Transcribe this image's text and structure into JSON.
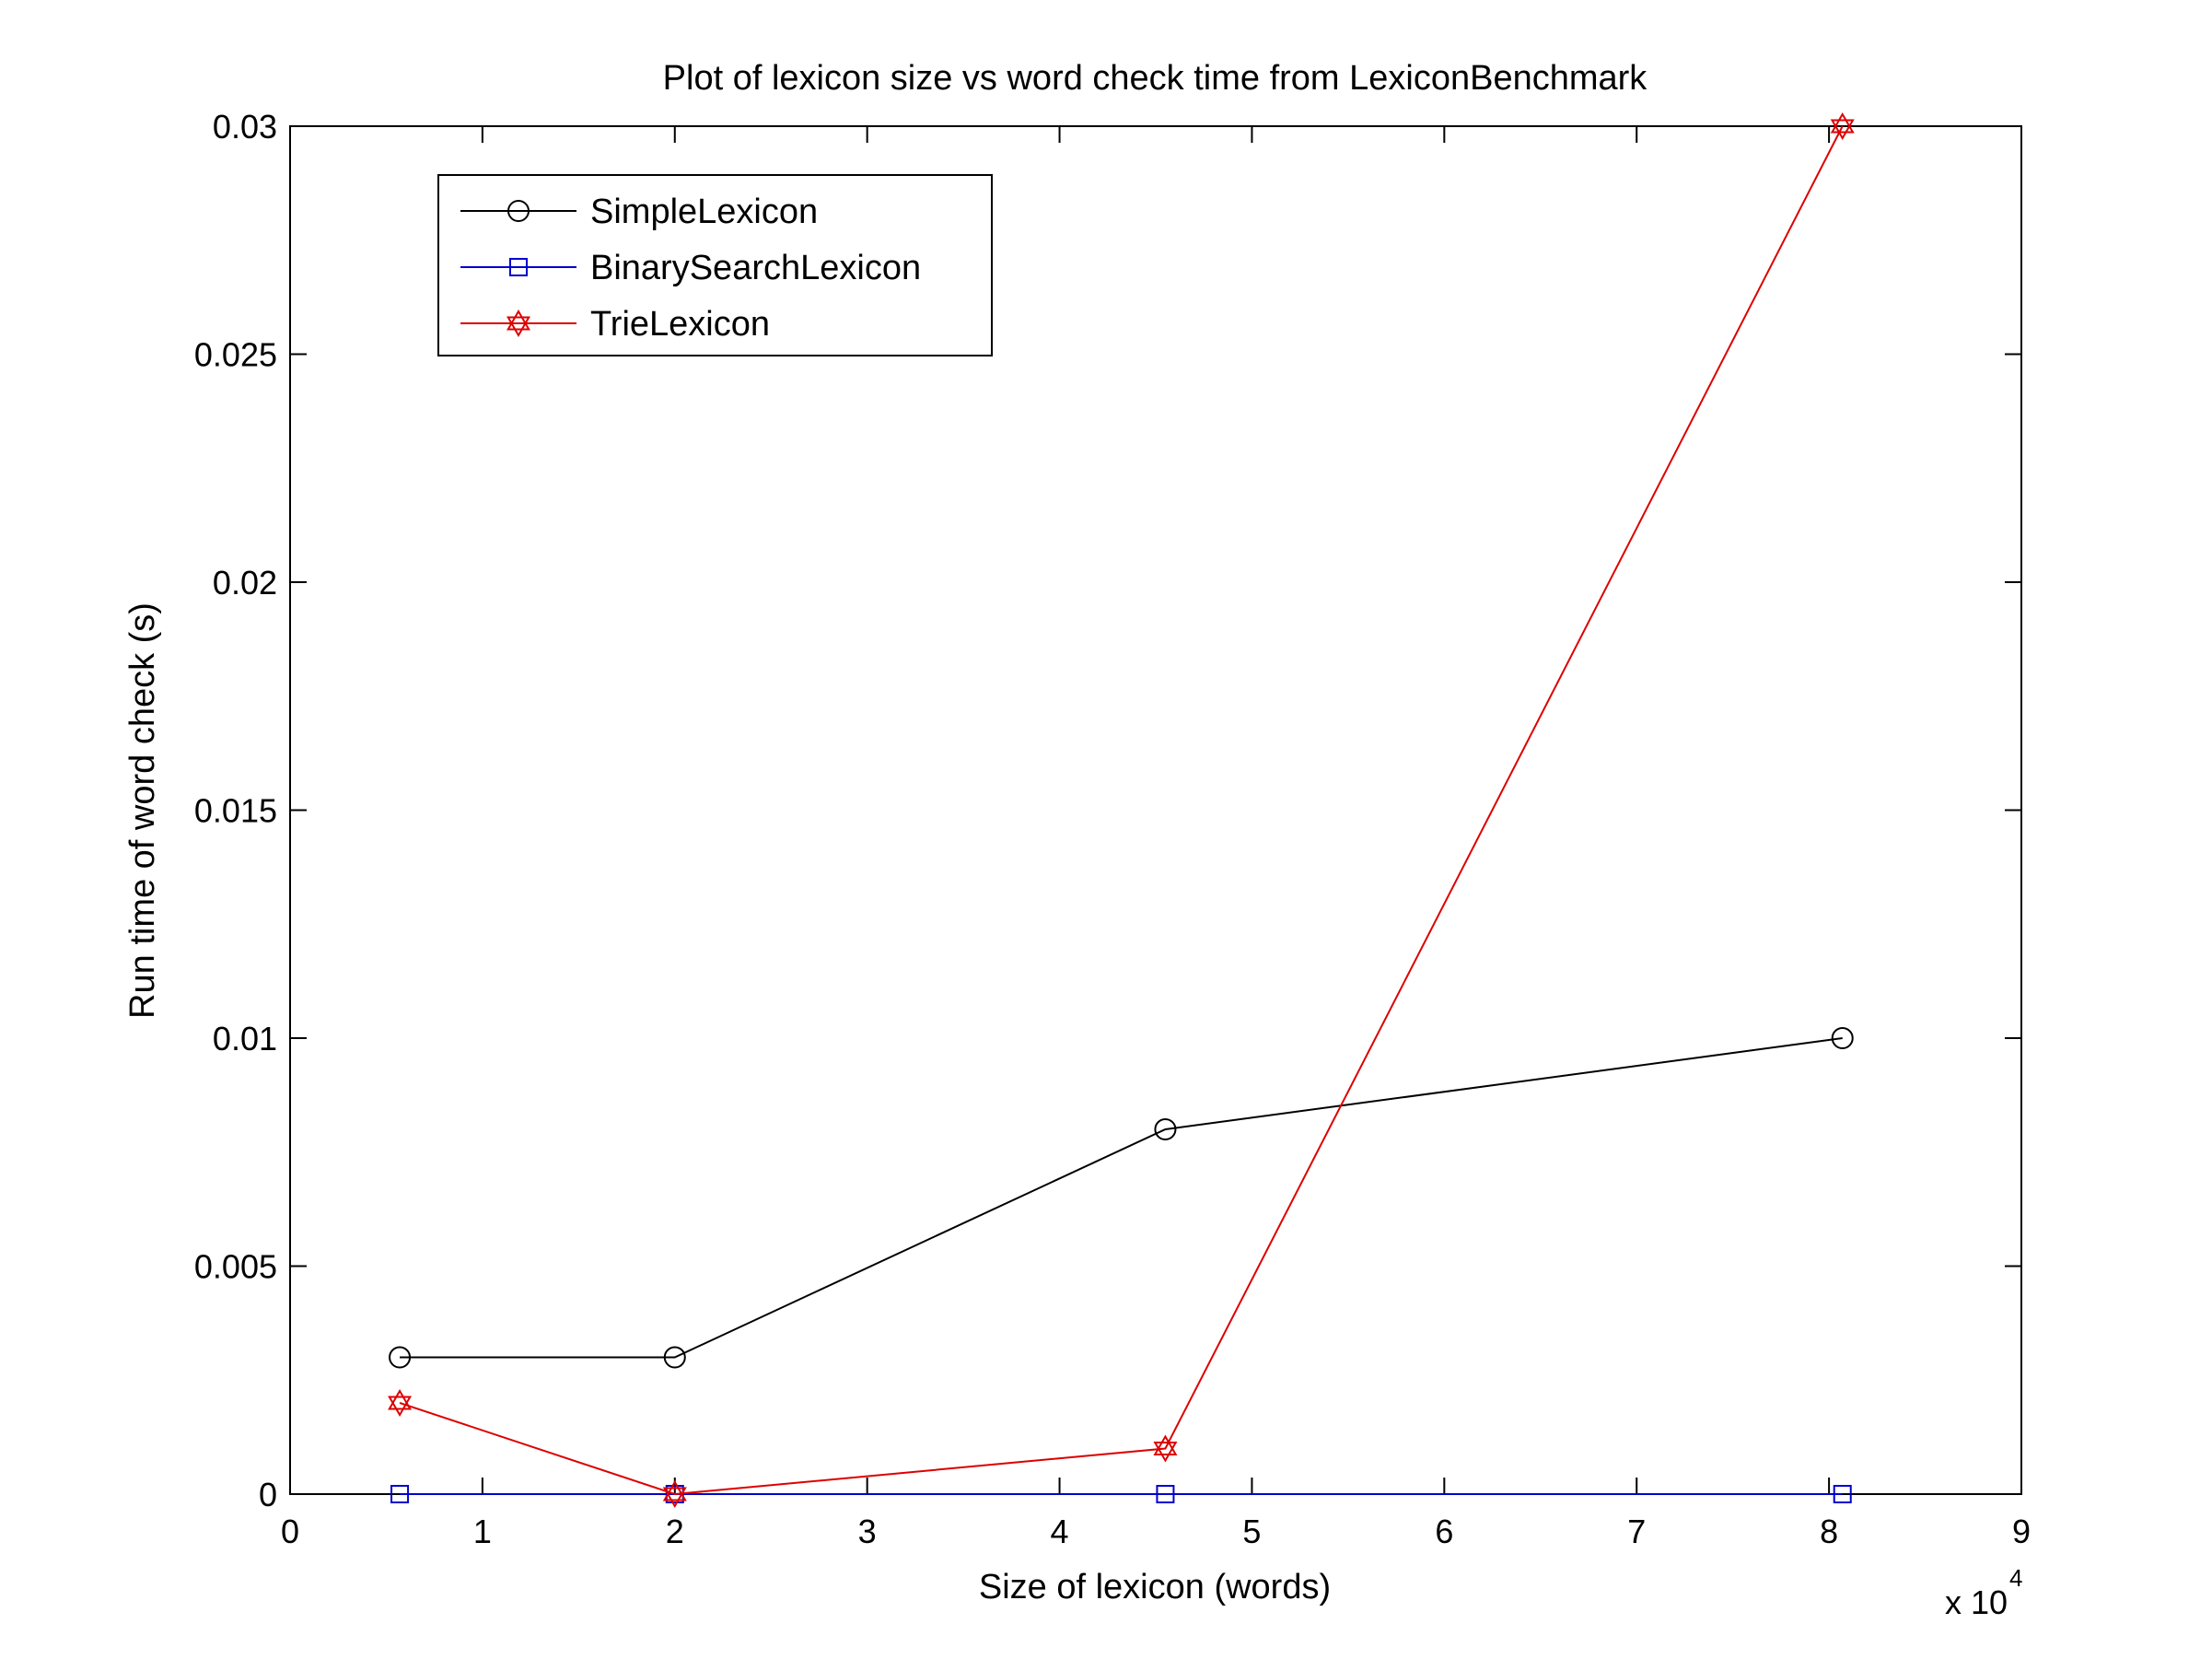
{
  "chart_data": {
    "type": "line",
    "title": "Plot of lexicon size vs word check time from LexiconBenchmark",
    "xlabel": "Size of lexicon (words)",
    "ylabel": "Run time of word check (s)",
    "x_multiplier_label": "x 10",
    "x_multiplier_exponent": "4",
    "xlim": [
      0,
      9
    ],
    "ylim": [
      0,
      0.03
    ],
    "xticks": [
      0,
      1,
      2,
      3,
      4,
      5,
      6,
      7,
      8,
      9
    ],
    "xtick_labels": [
      "0",
      "1",
      "2",
      "3",
      "4",
      "5",
      "6",
      "7",
      "8",
      "9"
    ],
    "yticks": [
      0,
      0.005,
      0.01,
      0.015,
      0.02,
      0.025,
      0.03
    ],
    "ytick_labels": [
      "0",
      "0.005",
      "0.01",
      "0.015",
      "0.02",
      "0.025",
      "0.03"
    ],
    "grid": false,
    "legend_position": "top-left",
    "x": [
      0.57,
      2.0,
      4.55,
      8.07
    ],
    "series": [
      {
        "name": "SimpleLexicon",
        "values": [
          0.003,
          0.003,
          0.008,
          0.01
        ],
        "color": "#000000",
        "marker": "circle"
      },
      {
        "name": "BinarySearchLexicon",
        "values": [
          0,
          0,
          0,
          0
        ],
        "color": "#0000cc",
        "marker": "square"
      },
      {
        "name": "TrieLexicon",
        "values": [
          0.002,
          0,
          0.001,
          0.03
        ],
        "color": "#dd0000",
        "marker": "hexagram"
      }
    ]
  }
}
